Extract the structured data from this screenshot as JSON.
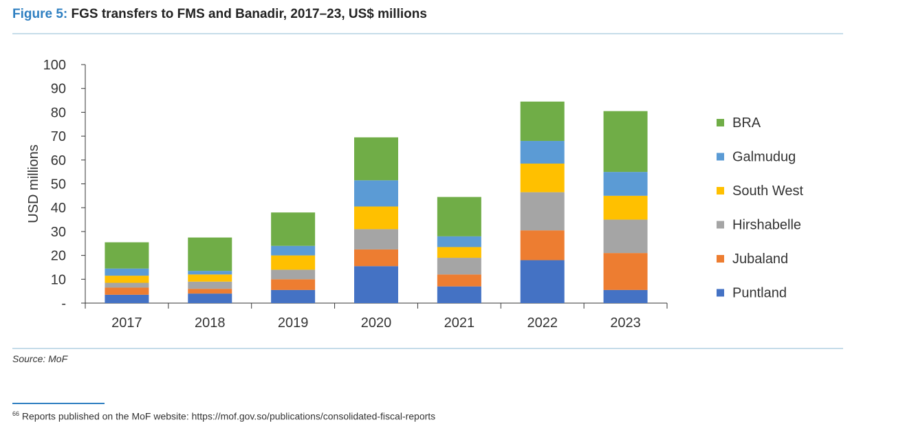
{
  "figure": {
    "label": "Figure 5:",
    "title": "FGS transfers to FMS and Banadir, 2017–23, US$ millions"
  },
  "source": "Source: MoF",
  "footnote": {
    "number": "66",
    "text": "Reports published on the MoF website: https://mof.gov.so/publications/consolidated-fiscal-reports"
  },
  "chart_data": {
    "type": "bar",
    "stacked": true,
    "title": "FGS transfers to FMS and Banadir, 2017–23, US$ millions",
    "xlabel": "",
    "ylabel": "USD millions",
    "ylim": [
      0,
      100
    ],
    "yticks": [
      0,
      10,
      20,
      30,
      40,
      50,
      60,
      70,
      80,
      90,
      100
    ],
    "ytick_labels": [
      "-",
      "10",
      "20",
      "30",
      "40",
      "50",
      "60",
      "70",
      "80",
      "90",
      "100"
    ],
    "categories": [
      "2017",
      "2018",
      "2019",
      "2020",
      "2021",
      "2022",
      "2023"
    ],
    "legend_position": "right",
    "series": [
      {
        "name": "Puntland",
        "color": "#4472c4",
        "values": [
          3.5,
          4,
          5.5,
          15.5,
          7,
          18,
          5.5
        ]
      },
      {
        "name": "Jubaland",
        "color": "#ed7d31",
        "values": [
          3,
          2,
          4.5,
          7,
          5,
          12.5,
          15.5
        ]
      },
      {
        "name": "Hirshabelle",
        "color": "#a5a5a5",
        "values": [
          2,
          3,
          4,
          8.5,
          7,
          16,
          14
        ]
      },
      {
        "name": "South West",
        "color": "#ffc000",
        "values": [
          3,
          3,
          6,
          9.5,
          4.5,
          12,
          10
        ]
      },
      {
        "name": "Galmudug",
        "color": "#5b9bd5",
        "values": [
          3,
          1.5,
          4,
          11,
          4.5,
          9.5,
          10
        ]
      },
      {
        "name": "BRA",
        "color": "#70ad47",
        "values": [
          11,
          14,
          14,
          18,
          16.5,
          16.5,
          25.5
        ]
      }
    ]
  }
}
